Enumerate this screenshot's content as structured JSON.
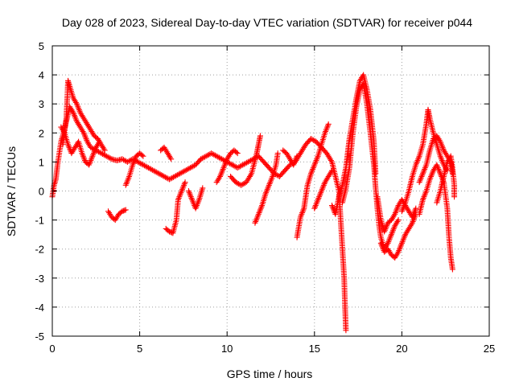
{
  "chart_data": {
    "type": "scatter",
    "title": "Day 028 of 2023, Sidereal Day-to-day VTEC variation (SDTVAR) for receiver p044",
    "xlabel": "GPS time / hours",
    "ylabel": "SDTVAR / TECUs",
    "xlim": [
      0,
      25
    ],
    "ylim": [
      -5,
      5
    ],
    "xticks": [
      "0",
      "5",
      "10",
      "15",
      "20",
      "25"
    ],
    "yticks": [
      "-5",
      "-4",
      "-3",
      "-2",
      "-1",
      "0",
      "1",
      "2",
      "3",
      "4",
      "5"
    ],
    "grid": true,
    "marker": "+",
    "color": "#ff0000",
    "series": [
      {
        "name": "p044",
        "tracks": [
          [
            [
              0.0,
              -0.2
            ],
            [
              0.1,
              0.2
            ],
            [
              0.2,
              0.4
            ],
            [
              0.3,
              0.9
            ],
            [
              0.4,
              1.3
            ],
            [
              0.5,
              1.7
            ],
            [
              0.6,
              1.9
            ],
            [
              0.8,
              2.4
            ],
            [
              1.0,
              2.9
            ],
            [
              1.2,
              2.7
            ],
            [
              1.4,
              2.4
            ],
            [
              1.6,
              2.2
            ],
            [
              1.8,
              2.0
            ],
            [
              2.0,
              1.7
            ],
            [
              2.2,
              1.5
            ],
            [
              2.5,
              1.4
            ],
            [
              2.8,
              1.3
            ],
            [
              3.1,
              1.2
            ],
            [
              3.4,
              1.1
            ],
            [
              3.7,
              1.05
            ],
            [
              4.0,
              1.1
            ],
            [
              4.3,
              1.0
            ],
            [
              4.6,
              1.1
            ],
            [
              4.9,
              1.0
            ],
            [
              5.2,
              0.9
            ],
            [
              5.5,
              0.8
            ],
            [
              5.8,
              0.7
            ],
            [
              6.1,
              0.6
            ],
            [
              6.4,
              0.5
            ],
            [
              6.7,
              0.4
            ],
            [
              7.0,
              0.5
            ],
            [
              7.3,
              0.6
            ],
            [
              7.6,
              0.7
            ],
            [
              7.9,
              0.8
            ],
            [
              8.2,
              0.9
            ],
            [
              8.5,
              1.1
            ],
            [
              8.8,
              1.2
            ],
            [
              9.1,
              1.3
            ],
            [
              9.4,
              1.2
            ],
            [
              9.7,
              1.1
            ],
            [
              10.0,
              1.0
            ],
            [
              10.3,
              0.9
            ],
            [
              10.6,
              0.8
            ],
            [
              10.9,
              0.9
            ],
            [
              11.2,
              1.0
            ],
            [
              11.5,
              1.1
            ],
            [
              11.8,
              1.2
            ],
            [
              12.1,
              1.0
            ],
            [
              12.4,
              0.8
            ],
            [
              12.7,
              0.6
            ],
            [
              13.0,
              0.5
            ],
            [
              13.3,
              0.7
            ],
            [
              13.6,
              0.9
            ],
            [
              13.9,
              1.0
            ],
            [
              14.2,
              1.3
            ],
            [
              14.5,
              1.6
            ],
            [
              14.8,
              1.8
            ],
            [
              15.1,
              1.7
            ],
            [
              15.4,
              1.5
            ],
            [
              15.7,
              1.3
            ],
            [
              16.0,
              1.0
            ],
            [
              16.2,
              0.5
            ],
            [
              16.4,
              0.0
            ],
            [
              16.5,
              -1.0
            ],
            [
              16.6,
              -2.0
            ],
            [
              16.7,
              -3.0
            ],
            [
              16.75,
              -4.0
            ],
            [
              16.8,
              -4.8
            ]
          ],
          [
            [
              0.6,
              1.6
            ],
            [
              0.8,
              2.5
            ],
            [
              0.9,
              3.8
            ],
            [
              1.0,
              3.6
            ],
            [
              1.2,
              3.2
            ],
            [
              1.4,
              3.0
            ],
            [
              1.6,
              2.7
            ],
            [
              1.8,
              2.5
            ],
            [
              2.0,
              2.3
            ],
            [
              2.2,
              2.1
            ],
            [
              2.4,
              1.9
            ],
            [
              2.6,
              1.8
            ],
            [
              2.8,
              1.6
            ],
            [
              3.0,
              1.4
            ]
          ],
          [
            [
              0.5,
              2.2
            ],
            [
              0.7,
              2.0
            ],
            [
              0.9,
              1.6
            ],
            [
              1.1,
              1.3
            ],
            [
              1.3,
              1.5
            ],
            [
              1.5,
              1.7
            ],
            [
              1.7,
              1.3
            ],
            [
              1.9,
              1.0
            ],
            [
              2.1,
              0.9
            ],
            [
              2.3,
              1.2
            ],
            [
              2.5,
              1.5
            ],
            [
              2.7,
              1.7
            ]
          ],
          [
            [
              3.2,
              -0.7
            ],
            [
              3.4,
              -0.9
            ],
            [
              3.6,
              -1.0
            ],
            [
              3.8,
              -0.8
            ],
            [
              4.0,
              -0.7
            ],
            [
              4.2,
              -0.65
            ]
          ],
          [
            [
              4.2,
              0.2
            ],
            [
              4.4,
              0.5
            ],
            [
              4.6,
              0.9
            ],
            [
              4.8,
              1.2
            ],
            [
              5.0,
              1.3
            ],
            [
              5.2,
              1.2
            ]
          ],
          [
            [
              6.2,
              1.4
            ],
            [
              6.4,
              1.5
            ],
            [
              6.6,
              1.3
            ],
            [
              6.8,
              1.1
            ]
          ],
          [
            [
              6.5,
              -1.3
            ],
            [
              6.7,
              -1.4
            ],
            [
              6.9,
              -1.45
            ],
            [
              7.1,
              -1.0
            ],
            [
              7.2,
              -0.3
            ],
            [
              7.4,
              0.0
            ],
            [
              7.6,
              0.3
            ]
          ],
          [
            [
              7.8,
              0.0
            ],
            [
              8.0,
              -0.3
            ],
            [
              8.2,
              -0.6
            ],
            [
              8.4,
              -0.3
            ],
            [
              8.6,
              0.1
            ]
          ],
          [
            [
              9.4,
              0.3
            ],
            [
              9.6,
              0.5
            ],
            [
              9.8,
              0.8
            ],
            [
              10.0,
              1.1
            ],
            [
              10.2,
              1.3
            ],
            [
              10.4,
              1.4
            ],
            [
              10.6,
              1.3
            ]
          ],
          [
            [
              10.2,
              0.5
            ],
            [
              10.5,
              0.3
            ],
            [
              10.8,
              0.2
            ],
            [
              11.1,
              0.3
            ],
            [
              11.4,
              0.6
            ],
            [
              11.7,
              1.3
            ],
            [
              11.8,
              1.6
            ],
            [
              11.9,
              1.9
            ]
          ],
          [
            [
              11.6,
              -1.1
            ],
            [
              11.8,
              -0.8
            ],
            [
              12.0,
              -0.5
            ],
            [
              12.2,
              -0.1
            ],
            [
              12.4,
              0.2
            ],
            [
              12.6,
              0.5
            ],
            [
              12.8,
              0.9
            ],
            [
              12.9,
              1.3
            ]
          ],
          [
            [
              13.2,
              1.4
            ],
            [
              13.4,
              1.3
            ],
            [
              13.6,
              1.1
            ],
            [
              13.8,
              0.9
            ],
            [
              14.0,
              1.2
            ]
          ],
          [
            [
              14.0,
              -1.6
            ],
            [
              14.2,
              -0.9
            ],
            [
              14.4,
              -0.6
            ],
            [
              14.6,
              0.2
            ],
            [
              14.8,
              0.6
            ],
            [
              15.0,
              0.9
            ],
            [
              15.2,
              1.2
            ],
            [
              15.4,
              1.6
            ],
            [
              15.6,
              2.0
            ],
            [
              15.8,
              2.3
            ]
          ],
          [
            [
              15.0,
              -0.6
            ],
            [
              15.2,
              -0.3
            ],
            [
              15.4,
              0.0
            ],
            [
              15.6,
              0.3
            ],
            [
              15.8,
              0.5
            ],
            [
              16.0,
              0.7
            ]
          ],
          [
            [
              16.0,
              -0.5
            ],
            [
              16.2,
              -0.8
            ],
            [
              16.4,
              -0.2
            ],
            [
              16.6,
              0.2
            ],
            [
              16.8,
              0.8
            ],
            [
              16.9,
              1.3
            ],
            [
              17.0,
              1.8
            ],
            [
              17.2,
              2.5
            ],
            [
              17.4,
              3.2
            ],
            [
              17.6,
              3.8
            ],
            [
              17.8,
              4.0
            ],
            [
              18.0,
              3.5
            ],
            [
              18.2,
              2.8
            ],
            [
              18.4,
              1.7
            ],
            [
              18.5,
              0.6
            ]
          ],
          [
            [
              16.6,
              -0.4
            ],
            [
              16.8,
              0.1
            ],
            [
              17.0,
              0.8
            ],
            [
              17.2,
              2.0
            ],
            [
              17.4,
              2.9
            ],
            [
              17.6,
              3.5
            ],
            [
              17.8,
              3.7
            ],
            [
              18.0,
              3.0
            ],
            [
              18.2,
              2.0
            ],
            [
              18.4,
              0.9
            ],
            [
              18.5,
              0.1
            ],
            [
              18.6,
              -0.6
            ],
            [
              18.7,
              -1.2
            ],
            [
              18.8,
              -1.6
            ],
            [
              19.0,
              -2.0
            ],
            [
              19.2,
              -1.8
            ],
            [
              19.4,
              -1.5
            ],
            [
              19.6,
              -1.2
            ],
            [
              19.8,
              -1.0
            ]
          ],
          [
            [
              18.6,
              -0.2
            ],
            [
              18.8,
              -1.0
            ],
            [
              19.0,
              -1.4
            ],
            [
              19.2,
              -1.1
            ],
            [
              19.4,
              -1.0
            ],
            [
              19.6,
              -0.8
            ],
            [
              19.8,
              -0.5
            ],
            [
              20.0,
              -0.3
            ],
            [
              20.2,
              -0.5
            ],
            [
              20.4,
              -0.7
            ],
            [
              20.6,
              -0.9
            ],
            [
              20.8,
              -0.6
            ]
          ],
          [
            [
              18.8,
              -1.8
            ],
            [
              19.0,
              -2.1
            ],
            [
              19.2,
              -2.0
            ],
            [
              19.4,
              -2.2
            ],
            [
              19.6,
              -2.3
            ],
            [
              19.8,
              -2.1
            ],
            [
              20.0,
              -1.8
            ],
            [
              20.2,
              -1.5
            ],
            [
              20.4,
              -1.3
            ],
            [
              20.6,
              -1.1
            ],
            [
              20.8,
              -0.8
            ]
          ],
          [
            [
              20.0,
              -0.7
            ],
            [
              20.2,
              -0.4
            ],
            [
              20.4,
              0.0
            ],
            [
              20.6,
              0.5
            ],
            [
              20.8,
              0.9
            ],
            [
              21.0,
              1.2
            ],
            [
              21.2,
              1.6
            ],
            [
              21.4,
              2.3
            ],
            [
              21.5,
              2.8
            ],
            [
              21.6,
              2.5
            ],
            [
              21.8,
              2.0
            ],
            [
              22.0,
              1.6
            ],
            [
              22.2,
              1.2
            ],
            [
              22.4,
              0.9
            ],
            [
              22.6,
              0.7
            ]
          ],
          [
            [
              21.0,
              0.3
            ],
            [
              21.2,
              0.6
            ],
            [
              21.4,
              0.9
            ],
            [
              21.6,
              1.4
            ],
            [
              21.8,
              1.8
            ],
            [
              22.0,
              1.9
            ],
            [
              22.2,
              1.7
            ],
            [
              22.4,
              1.4
            ],
            [
              22.6,
              1.2
            ],
            [
              22.8,
              1.0
            ],
            [
              22.9,
              0.6
            ]
          ],
          [
            [
              21.0,
              -0.8
            ],
            [
              21.2,
              -0.3
            ],
            [
              21.4,
              0.0
            ],
            [
              21.6,
              0.4
            ],
            [
              21.8,
              0.7
            ],
            [
              22.0,
              0.9
            ],
            [
              22.2,
              0.6
            ],
            [
              22.4,
              0.3
            ],
            [
              22.6,
              -0.6
            ],
            [
              22.7,
              -1.6
            ],
            [
              22.8,
              -2.3
            ],
            [
              22.9,
              -2.7
            ]
          ],
          [
            [
              22.0,
              -0.4
            ],
            [
              22.2,
              0.0
            ],
            [
              22.4,
              0.5
            ],
            [
              22.6,
              1.0
            ],
            [
              22.8,
              1.2
            ],
            [
              22.9,
              0.8
            ],
            [
              23.0,
              0.2
            ],
            [
              23.0,
              -0.2
            ]
          ]
        ]
      }
    ]
  }
}
